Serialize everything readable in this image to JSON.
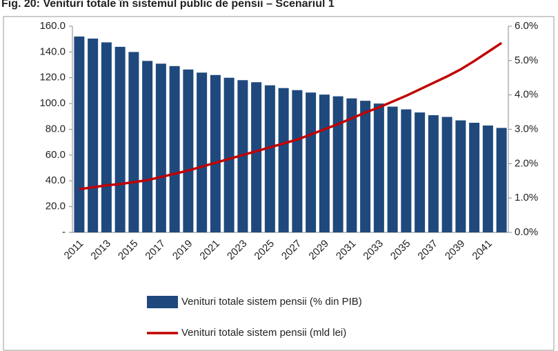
{
  "chart_data": {
    "type": "bar_line",
    "title": "Fig. 20: Venituri totale în sistemul public de pensii – Scenariul 1",
    "categories": [
      "2011",
      null,
      "2013",
      null,
      "2015",
      null,
      "2017",
      null,
      "2019",
      null,
      "2021",
      null,
      "2023",
      null,
      "2025",
      null,
      "2027",
      null,
      "2029",
      null,
      "2031",
      null,
      "2033",
      null,
      "2035",
      null,
      "2037",
      null,
      "2039",
      null,
      "2041",
      null
    ],
    "series": [
      {
        "name": "Venituri totale sistem pensii (% din PIB)",
        "type": "bar",
        "axis": "y2",
        "color": "#1f497d",
        "values": [
          5.7,
          5.64,
          5.53,
          5.4,
          5.25,
          4.99,
          4.91,
          4.84,
          4.74,
          4.65,
          4.58,
          4.5,
          4.43,
          4.37,
          4.28,
          4.2,
          4.14,
          4.07,
          4.01,
          3.96,
          3.9,
          3.83,
          3.75,
          3.66,
          3.58,
          3.49,
          3.41,
          3.36,
          3.26,
          3.19,
          3.11,
          3.04
        ]
      },
      {
        "name": "Venituri totale sistem pensii (mld lei)",
        "type": "line",
        "color": "#c00000",
        "values": [
          33.5,
          35,
          36.5,
          37.5,
          39,
          40.5,
          43,
          45.5,
          48,
          51,
          54,
          57,
          60,
          63,
          66,
          69,
          72,
          76,
          80,
          84,
          88.5,
          93,
          97,
          101.5,
          106,
          111,
          116,
          121,
          126.5,
          133,
          140,
          147
        ]
      }
    ],
    "ylim": [
      0,
      160
    ],
    "yticks": [
      {
        "value": 0,
        "label": "-"
      },
      {
        "value": 20,
        "label": "20.0"
      },
      {
        "value": 40,
        "label": "40.0"
      },
      {
        "value": 60,
        "label": "60.0"
      },
      {
        "value": 80,
        "label": "80.0"
      },
      {
        "value": 100,
        "label": "100.0"
      },
      {
        "value": 120,
        "label": "120.0"
      },
      {
        "value": 140,
        "label": "140.0"
      },
      {
        "value": 160,
        "label": "160.0"
      }
    ],
    "y2lim": [
      0,
      6
    ],
    "y2ticks": [
      {
        "value": 0,
        "label": "0.0%"
      },
      {
        "value": 1,
        "label": "1.0%"
      },
      {
        "value": 2,
        "label": "2.0%"
      },
      {
        "value": 3,
        "label": "3.0%"
      },
      {
        "value": 4,
        "label": "4.0%"
      },
      {
        "value": 5,
        "label": "5.0%"
      },
      {
        "value": 6,
        "label": "6.0%"
      }
    ],
    "legend": "bottom"
  }
}
